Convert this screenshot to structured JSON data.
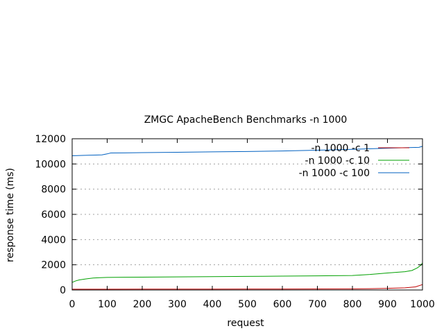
{
  "chart_data": {
    "type": "line",
    "title": "ZMGC ApacheBench Benchmarks -n 1000",
    "xlabel": "request",
    "ylabel": "response time (ms)",
    "xlim": [
      0,
      1000
    ],
    "ylim": [
      0,
      12000
    ],
    "xticks": [
      0,
      100,
      200,
      300,
      400,
      500,
      600,
      700,
      800,
      900,
      1000
    ],
    "yticks": [
      0,
      2000,
      4000,
      6000,
      8000,
      10000,
      12000
    ],
    "grid": "horizontal-dotted",
    "legend_position": "top-right",
    "series": [
      {
        "name": "-n 1000 -c 1",
        "color": "#c00000",
        "x": [
          0,
          100,
          200,
          300,
          400,
          500,
          600,
          700,
          800,
          850,
          900,
          950,
          980,
          1000
        ],
        "y": [
          60,
          65,
          68,
          70,
          72,
          74,
          76,
          80,
          90,
          100,
          130,
          170,
          250,
          430
        ]
      },
      {
        "name": "-n 1000 -c 10",
        "color": "#00a000",
        "x": [
          0,
          10,
          20,
          40,
          60,
          80,
          100,
          150,
          200,
          300,
          400,
          500,
          600,
          700,
          800,
          850,
          900,
          950,
          970,
          985,
          995,
          1000
        ],
        "y": [
          600,
          720,
          800,
          880,
          950,
          980,
          1000,
          1010,
          1020,
          1040,
          1060,
          1080,
          1100,
          1120,
          1150,
          1230,
          1350,
          1450,
          1550,
          1750,
          1950,
          2150
        ]
      },
      {
        "name": "-n 1000 -c 100",
        "color": "#0060c0",
        "x": [
          0,
          30,
          60,
          85,
          100,
          110,
          150,
          200,
          300,
          400,
          500,
          600,
          700,
          800,
          900,
          950,
          990,
          1000
        ],
        "y": [
          10650,
          10680,
          10700,
          10720,
          10800,
          10870,
          10880,
          10900,
          10930,
          10960,
          10990,
          11030,
          11090,
          11160,
          11250,
          11290,
          11320,
          11400
        ]
      }
    ]
  }
}
